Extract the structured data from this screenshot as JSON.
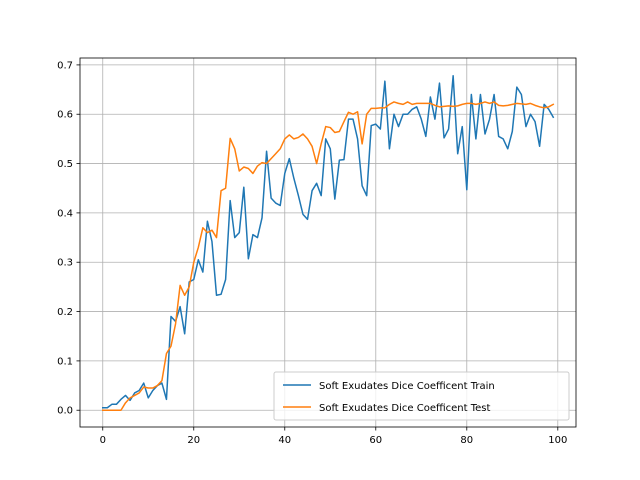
{
  "chart_data": {
    "type": "line",
    "title": "",
    "xlabel": "",
    "ylabel": "",
    "xlim": [
      -5,
      104
    ],
    "ylim": [
      -0.034,
      0.714
    ],
    "xticks": [
      0,
      20,
      40,
      60,
      80,
      100
    ],
    "yticks": [
      0.0,
      0.1,
      0.2,
      0.3,
      0.4,
      0.5,
      0.6,
      0.7
    ],
    "xtick_labels": [
      "0",
      "20",
      "40",
      "60",
      "80",
      "100"
    ],
    "ytick_labels": [
      "0.0",
      "0.1",
      "0.2",
      "0.3",
      "0.4",
      "0.5",
      "0.6",
      "0.7"
    ],
    "grid": true,
    "legend_position": "lower-right",
    "series": [
      {
        "name": "Soft Exudates Dice Coefficent Train",
        "color": "#1f77b4",
        "x": [
          0,
          1,
          2,
          3,
          4,
          5,
          6,
          7,
          8,
          9,
          10,
          11,
          12,
          13,
          14,
          15,
          16,
          17,
          18,
          19,
          20,
          21,
          22,
          23,
          24,
          25,
          26,
          27,
          28,
          29,
          30,
          31,
          32,
          33,
          34,
          35,
          36,
          37,
          38,
          39,
          40,
          41,
          42,
          43,
          44,
          45,
          46,
          47,
          48,
          49,
          50,
          51,
          52,
          53,
          54,
          55,
          56,
          57,
          58,
          59,
          60,
          61,
          62,
          63,
          64,
          65,
          66,
          67,
          68,
          69,
          70,
          71,
          72,
          73,
          74,
          75,
          76,
          77,
          78,
          79,
          80,
          81,
          82,
          83,
          84,
          85,
          86,
          87,
          88,
          89,
          90,
          91,
          92,
          93,
          94,
          95,
          96,
          97,
          98,
          99
        ],
        "y": [
          0.005,
          0.005,
          0.012,
          0.012,
          0.022,
          0.03,
          0.02,
          0.035,
          0.04,
          0.055,
          0.025,
          0.04,
          0.05,
          0.055,
          0.022,
          0.19,
          0.18,
          0.21,
          0.155,
          0.26,
          0.265,
          0.305,
          0.28,
          0.383,
          0.342,
          0.233,
          0.235,
          0.265,
          0.425,
          0.35,
          0.36,
          0.452,
          0.307,
          0.356,
          0.35,
          0.39,
          0.525,
          0.43,
          0.42,
          0.415,
          0.48,
          0.51,
          0.47,
          0.435,
          0.397,
          0.387,
          0.445,
          0.46,
          0.435,
          0.55,
          0.53,
          0.428,
          0.507,
          0.508,
          0.59,
          0.59,
          0.55,
          0.455,
          0.435,
          0.577,
          0.58,
          0.57,
          0.667,
          0.53,
          0.6,
          0.575,
          0.6,
          0.6,
          0.61,
          0.615,
          0.59,
          0.555,
          0.635,
          0.59,
          0.663,
          0.552,
          0.57,
          0.678,
          0.52,
          0.575,
          0.447,
          0.64,
          0.55,
          0.64,
          0.56,
          0.59,
          0.64,
          0.555,
          0.55,
          0.53,
          0.565,
          0.655,
          0.64,
          0.575,
          0.6,
          0.585,
          0.535,
          0.62,
          0.61,
          0.594
        ]
      },
      {
        "name": "Soft Exudates Dice Coefficent Test",
        "color": "#ff7f0e",
        "x": [
          0,
          1,
          2,
          3,
          4,
          5,
          6,
          7,
          8,
          9,
          10,
          11,
          12,
          13,
          14,
          15,
          16,
          17,
          18,
          19,
          20,
          21,
          22,
          23,
          24,
          25,
          26,
          27,
          28,
          29,
          30,
          31,
          32,
          33,
          34,
          35,
          36,
          37,
          38,
          39,
          40,
          41,
          42,
          43,
          44,
          45,
          46,
          47,
          48,
          49,
          50,
          51,
          52,
          53,
          54,
          55,
          56,
          57,
          58,
          59,
          60,
          61,
          62,
          63,
          64,
          65,
          66,
          67,
          68,
          69,
          70,
          71,
          72,
          73,
          74,
          75,
          76,
          77,
          78,
          79,
          80,
          81,
          82,
          83,
          84,
          85,
          86,
          87,
          88,
          89,
          90,
          91,
          92,
          93,
          94,
          95,
          96,
          97,
          98,
          99
        ],
        "y": [
          0.0,
          0.0,
          0.0,
          0.0,
          0.0,
          0.015,
          0.025,
          0.03,
          0.035,
          0.047,
          0.045,
          0.045,
          0.05,
          0.06,
          0.115,
          0.13,
          0.175,
          0.253,
          0.233,
          0.25,
          0.3,
          0.33,
          0.37,
          0.36,
          0.365,
          0.35,
          0.445,
          0.45,
          0.551,
          0.53,
          0.485,
          0.493,
          0.49,
          0.48,
          0.495,
          0.502,
          0.5,
          0.51,
          0.52,
          0.53,
          0.55,
          0.558,
          0.55,
          0.553,
          0.56,
          0.55,
          0.535,
          0.5,
          0.54,
          0.575,
          0.573,
          0.563,
          0.565,
          0.585,
          0.604,
          0.6,
          0.605,
          0.54,
          0.6,
          0.612,
          0.612,
          0.613,
          0.613,
          0.62,
          0.625,
          0.622,
          0.62,
          0.625,
          0.62,
          0.622,
          0.622,
          0.622,
          0.622,
          0.618,
          0.615,
          0.616,
          0.617,
          0.616,
          0.617,
          0.62,
          0.622,
          0.622,
          0.62,
          0.622,
          0.625,
          0.622,
          0.625,
          0.618,
          0.617,
          0.618,
          0.62,
          0.622,
          0.621,
          0.62,
          0.622,
          0.618,
          0.615,
          0.613,
          0.615,
          0.62
        ]
      }
    ]
  }
}
